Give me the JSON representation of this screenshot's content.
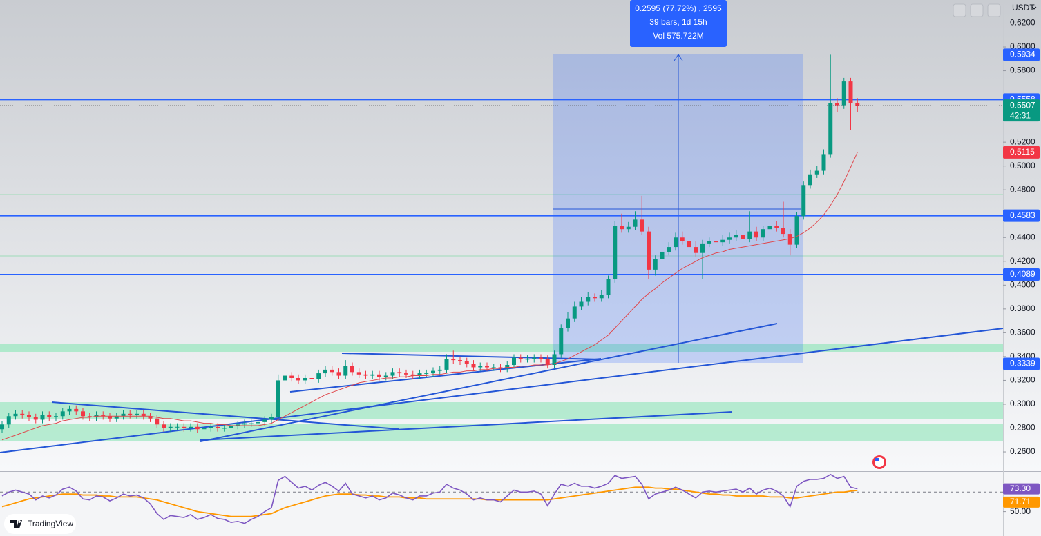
{
  "chart_data": {
    "type": "candlestick",
    "quote": "USDT",
    "brand": "TradingView",
    "ylim": [
      0.2438,
      0.6394
    ],
    "yticks": [
      {
        "value": 0.62,
        "label": "0.6200"
      },
      {
        "value": 0.6,
        "label": "0.6000"
      },
      {
        "value": 0.58,
        "label": "0.5800"
      },
      {
        "value": 0.52,
        "label": "0.5200"
      },
      {
        "value": 0.5,
        "label": "0.5000"
      },
      {
        "value": 0.48,
        "label": "0.4800"
      },
      {
        "value": 0.44,
        "label": "0.4400"
      },
      {
        "value": 0.42,
        "label": "0.4200"
      },
      {
        "value": 0.4,
        "label": "0.4000"
      },
      {
        "value": 0.38,
        "label": "0.3800"
      },
      {
        "value": 0.36,
        "label": "0.3600"
      },
      {
        "value": 0.34,
        "label": "0.3400"
      },
      {
        "value": 0.32,
        "label": "0.3200"
      },
      {
        "value": 0.3,
        "label": "0.3000"
      },
      {
        "value": 0.28,
        "label": "0.2800"
      },
      {
        "value": 0.26,
        "label": "0.2600"
      }
    ],
    "colors": {
      "up": "#089981",
      "down": "#f23645"
    },
    "open": [
      0.279,
      0.283,
      0.29,
      0.292,
      0.291,
      0.289,
      0.287,
      0.291,
      0.289,
      0.29,
      0.294,
      0.296,
      0.294,
      0.29,
      0.289,
      0.291,
      0.29,
      0.288,
      0.29,
      0.292,
      0.291,
      0.292,
      0.29,
      0.288,
      0.283,
      0.28,
      0.281,
      0.281,
      0.28,
      0.281,
      0.279,
      0.28,
      0.281,
      0.28,
      0.28,
      0.282,
      0.283,
      0.284,
      0.284,
      0.285,
      0.287,
      0.289,
      0.32,
      0.324,
      0.322,
      0.32,
      0.322,
      0.321,
      0.326,
      0.329,
      0.327,
      0.324,
      0.332,
      0.327,
      0.325,
      0.324,
      0.325,
      0.323,
      0.324,
      0.327,
      0.326,
      0.325,
      0.324,
      0.326,
      0.326,
      0.328,
      0.329,
      0.338,
      0.337,
      0.336,
      0.334,
      0.331,
      0.332,
      0.331,
      0.331,
      0.33,
      0.333,
      0.339,
      0.338,
      0.338,
      0.339,
      0.338,
      0.333,
      0.342,
      0.364,
      0.372,
      0.382,
      0.386,
      0.39,
      0.389,
      0.392,
      0.405,
      0.45,
      0.447,
      0.449,
      0.455,
      0.445,
      0.413,
      0.422,
      0.428,
      0.432,
      0.44,
      0.437,
      0.432,
      0.427,
      0.435,
      0.437,
      0.436,
      0.438,
      0.44,
      0.442,
      0.439,
      0.445,
      0.44,
      0.447,
      0.45,
      0.448,
      0.443,
      0.434,
      0.458,
      0.484,
      0.493,
      0.496,
      0.51,
      0.553,
      0.551,
      0.571,
      0.553
    ],
    "high": [
      0.286,
      0.293,
      0.295,
      0.295,
      0.294,
      0.292,
      0.294,
      0.294,
      0.293,
      0.297,
      0.299,
      0.299,
      0.297,
      0.293,
      0.294,
      0.294,
      0.293,
      0.293,
      0.295,
      0.295,
      0.295,
      0.295,
      0.293,
      0.291,
      0.286,
      0.284,
      0.284,
      0.284,
      0.284,
      0.284,
      0.283,
      0.284,
      0.284,
      0.283,
      0.285,
      0.286,
      0.287,
      0.287,
      0.288,
      0.29,
      0.292,
      0.325,
      0.327,
      0.327,
      0.325,
      0.325,
      0.325,
      0.329,
      0.332,
      0.332,
      0.33,
      0.337,
      0.335,
      0.33,
      0.328,
      0.328,
      0.328,
      0.327,
      0.33,
      0.33,
      0.329,
      0.328,
      0.329,
      0.329,
      0.331,
      0.332,
      0.342,
      0.345,
      0.34,
      0.339,
      0.337,
      0.335,
      0.335,
      0.334,
      0.334,
      0.336,
      0.342,
      0.342,
      0.341,
      0.342,
      0.342,
      0.341,
      0.345,
      0.367,
      0.377,
      0.386,
      0.39,
      0.394,
      0.393,
      0.396,
      0.408,
      0.454,
      0.46,
      0.453,
      0.462,
      0.475,
      0.449,
      0.425,
      0.432,
      0.436,
      0.444,
      0.445,
      0.442,
      0.437,
      0.438,
      0.44,
      0.44,
      0.442,
      0.444,
      0.446,
      0.446,
      0.462,
      0.449,
      0.45,
      0.453,
      0.454,
      0.47,
      0.447,
      0.461,
      0.487,
      0.497,
      0.5,
      0.514,
      0.5934,
      0.557,
      0.574,
      0.574,
      0.557
    ],
    "low": [
      0.276,
      0.28,
      0.287,
      0.288,
      0.286,
      0.284,
      0.284,
      0.286,
      0.286,
      0.287,
      0.291,
      0.291,
      0.287,
      0.286,
      0.286,
      0.287,
      0.285,
      0.285,
      0.287,
      0.288,
      0.288,
      0.287,
      0.285,
      0.28,
      0.277,
      0.277,
      0.278,
      0.277,
      0.277,
      0.276,
      0.276,
      0.277,
      0.277,
      0.277,
      0.277,
      0.279,
      0.28,
      0.281,
      0.281,
      0.282,
      0.284,
      0.286,
      0.317,
      0.319,
      0.317,
      0.317,
      0.318,
      0.318,
      0.323,
      0.324,
      0.321,
      0.321,
      0.324,
      0.322,
      0.321,
      0.321,
      0.32,
      0.32,
      0.321,
      0.323,
      0.322,
      0.321,
      0.321,
      0.323,
      0.323,
      0.325,
      0.326,
      0.334,
      0.333,
      0.331,
      0.328,
      0.328,
      0.328,
      0.328,
      0.327,
      0.327,
      0.33,
      0.335,
      0.335,
      0.335,
      0.335,
      0.33,
      0.33,
      0.339,
      0.361,
      0.369,
      0.379,
      0.383,
      0.386,
      0.386,
      0.389,
      0.402,
      0.444,
      0.444,
      0.446,
      0.442,
      0.405,
      0.408,
      0.419,
      0.425,
      0.429,
      0.434,
      0.429,
      0.424,
      0.405,
      0.432,
      0.433,
      0.433,
      0.435,
      0.437,
      0.436,
      0.436,
      0.437,
      0.437,
      0.444,
      0.445,
      0.44,
      0.425,
      0.431,
      0.455,
      0.481,
      0.49,
      0.493,
      0.507,
      0.545,
      0.548,
      0.53,
      0.545
    ],
    "close": [
      0.283,
      0.29,
      0.292,
      0.291,
      0.289,
      0.287,
      0.291,
      0.289,
      0.29,
      0.294,
      0.296,
      0.294,
      0.29,
      0.289,
      0.291,
      0.29,
      0.288,
      0.29,
      0.292,
      0.291,
      0.292,
      0.29,
      0.288,
      0.283,
      0.28,
      0.281,
      0.281,
      0.28,
      0.281,
      0.279,
      0.28,
      0.281,
      0.28,
      0.28,
      0.282,
      0.283,
      0.284,
      0.284,
      0.285,
      0.287,
      0.289,
      0.32,
      0.324,
      0.322,
      0.32,
      0.322,
      0.321,
      0.326,
      0.329,
      0.327,
      0.324,
      0.332,
      0.327,
      0.325,
      0.324,
      0.325,
      0.323,
      0.324,
      0.327,
      0.326,
      0.325,
      0.324,
      0.326,
      0.326,
      0.328,
      0.329,
      0.338,
      0.337,
      0.336,
      0.334,
      0.331,
      0.332,
      0.331,
      0.331,
      0.33,
      0.333,
      0.339,
      0.338,
      0.338,
      0.339,
      0.338,
      0.333,
      0.342,
      0.364,
      0.372,
      0.382,
      0.386,
      0.39,
      0.389,
      0.392,
      0.405,
      0.45,
      0.447,
      0.449,
      0.455,
      0.445,
      0.413,
      0.422,
      0.428,
      0.432,
      0.44,
      0.437,
      0.432,
      0.427,
      0.435,
      0.437,
      0.436,
      0.438,
      0.44,
      0.442,
      0.439,
      0.445,
      0.44,
      0.447,
      0.45,
      0.448,
      0.443,
      0.434,
      0.458,
      0.484,
      0.493,
      0.496,
      0.51,
      0.553,
      0.551,
      0.571,
      0.553,
      0.5507
    ],
    "ma": [
      0.27,
      0.272,
      0.274,
      0.276,
      0.278,
      0.28,
      0.282,
      0.283,
      0.284,
      0.286,
      0.287,
      0.288,
      0.289,
      0.289,
      0.29,
      0.29,
      0.29,
      0.29,
      0.29,
      0.29,
      0.29,
      0.29,
      0.29,
      0.289,
      0.288,
      0.288,
      0.287,
      0.286,
      0.286,
      0.285,
      0.284,
      0.284,
      0.283,
      0.283,
      0.282,
      0.282,
      0.282,
      0.282,
      0.282,
      0.283,
      0.284,
      0.287,
      0.29,
      0.293,
      0.296,
      0.299,
      0.302,
      0.305,
      0.308,
      0.31,
      0.312,
      0.314,
      0.316,
      0.318,
      0.319,
      0.32,
      0.321,
      0.322,
      0.322,
      0.323,
      0.323,
      0.324,
      0.324,
      0.324,
      0.325,
      0.325,
      0.326,
      0.327,
      0.327,
      0.328,
      0.328,
      0.329,
      0.329,
      0.33,
      0.33,
      0.331,
      0.331,
      0.332,
      0.332,
      0.333,
      0.333,
      0.333,
      0.334,
      0.336,
      0.338,
      0.341,
      0.344,
      0.347,
      0.35,
      0.354,
      0.358,
      0.364,
      0.37,
      0.376,
      0.382,
      0.388,
      0.393,
      0.397,
      0.402,
      0.406,
      0.41,
      0.414,
      0.417,
      0.42,
      0.423,
      0.425,
      0.427,
      0.428,
      0.43,
      0.431,
      0.432,
      0.433,
      0.434,
      0.435,
      0.436,
      0.437,
      0.438,
      0.439,
      0.441,
      0.444,
      0.448,
      0.453,
      0.459,
      0.467,
      0.476,
      0.487,
      0.499,
      0.5115
    ],
    "ma_color": "#e0474c",
    "levels": [
      0.5558,
      0.4583,
      0.4089
    ],
    "level_color": "#2962ff",
    "measure": {
      "from": 0.3339,
      "lines": [
        "0.2595 (77.72%) , 2595",
        "39 bars, 1d 15h",
        "Vol 575.722M"
      ]
    },
    "countdown": "42:31",
    "rsi": {
      "ylim": [
        25,
        90
      ],
      "yticks": [
        {
          "value": 50,
          "label": "50.00"
        }
      ],
      "band": 70,
      "series": [
        {
          "color": "#7e57c2",
          "label": "73.30",
          "values": [
            66,
            70,
            72,
            70,
            68,
            62,
            66,
            64,
            67,
            73,
            75,
            71,
            63,
            62,
            66,
            65,
            61,
            64,
            68,
            66,
            67,
            64,
            58,
            48,
            42,
            46,
            45,
            44,
            47,
            42,
            44,
            47,
            43,
            42,
            39,
            40,
            38,
            42,
            45,
            50,
            54,
            82,
            86,
            80,
            74,
            76,
            72,
            77,
            80,
            76,
            71,
            79,
            68,
            66,
            64,
            66,
            62,
            64,
            69,
            67,
            64,
            62,
            66,
            66,
            69,
            70,
            78,
            74,
            72,
            68,
            62,
            64,
            62,
            62,
            60,
            66,
            72,
            70,
            70,
            71,
            68,
            56,
            68,
            78,
            76,
            79,
            76,
            76,
            74,
            76,
            79,
            87,
            84,
            85,
            86,
            78,
            63,
            68,
            70,
            72,
            75,
            72,
            68,
            64,
            70,
            71,
            70,
            71,
            72,
            73,
            70,
            74,
            68,
            72,
            74,
            71,
            66,
            55,
            76,
            81,
            83,
            83,
            84,
            88,
            84,
            86,
            75,
            73.3
          ]
        },
        {
          "color": "#ff9800",
          "label": "71.71",
          "values": [
            55,
            57,
            59,
            61,
            63,
            64,
            65,
            66,
            67,
            68,
            68,
            68,
            67,
            67,
            67,
            66,
            66,
            65,
            65,
            65,
            65,
            64,
            63,
            62,
            60,
            58,
            56,
            54,
            52,
            50,
            49,
            48,
            47,
            46,
            45,
            45,
            45,
            45,
            46,
            47,
            48,
            51,
            54,
            56,
            58,
            60,
            62,
            64,
            66,
            67,
            68,
            68,
            68,
            67,
            67,
            66,
            66,
            65,
            65,
            65,
            64,
            64,
            64,
            63,
            63,
            63,
            63,
            63,
            63,
            63,
            63,
            63,
            62,
            62,
            62,
            62,
            62,
            62,
            62,
            62,
            62,
            62,
            63,
            64,
            65,
            66,
            67,
            68,
            69,
            70,
            71,
            72,
            73,
            74,
            75,
            75,
            75,
            74,
            74,
            73,
            73,
            72,
            71,
            70,
            69,
            68,
            68,
            67,
            67,
            66,
            66,
            66,
            66,
            66,
            65,
            65,
            65,
            64,
            64,
            65,
            66,
            67,
            68,
            69,
            70,
            70,
            71,
            71.71
          ]
        }
      ]
    }
  }
}
